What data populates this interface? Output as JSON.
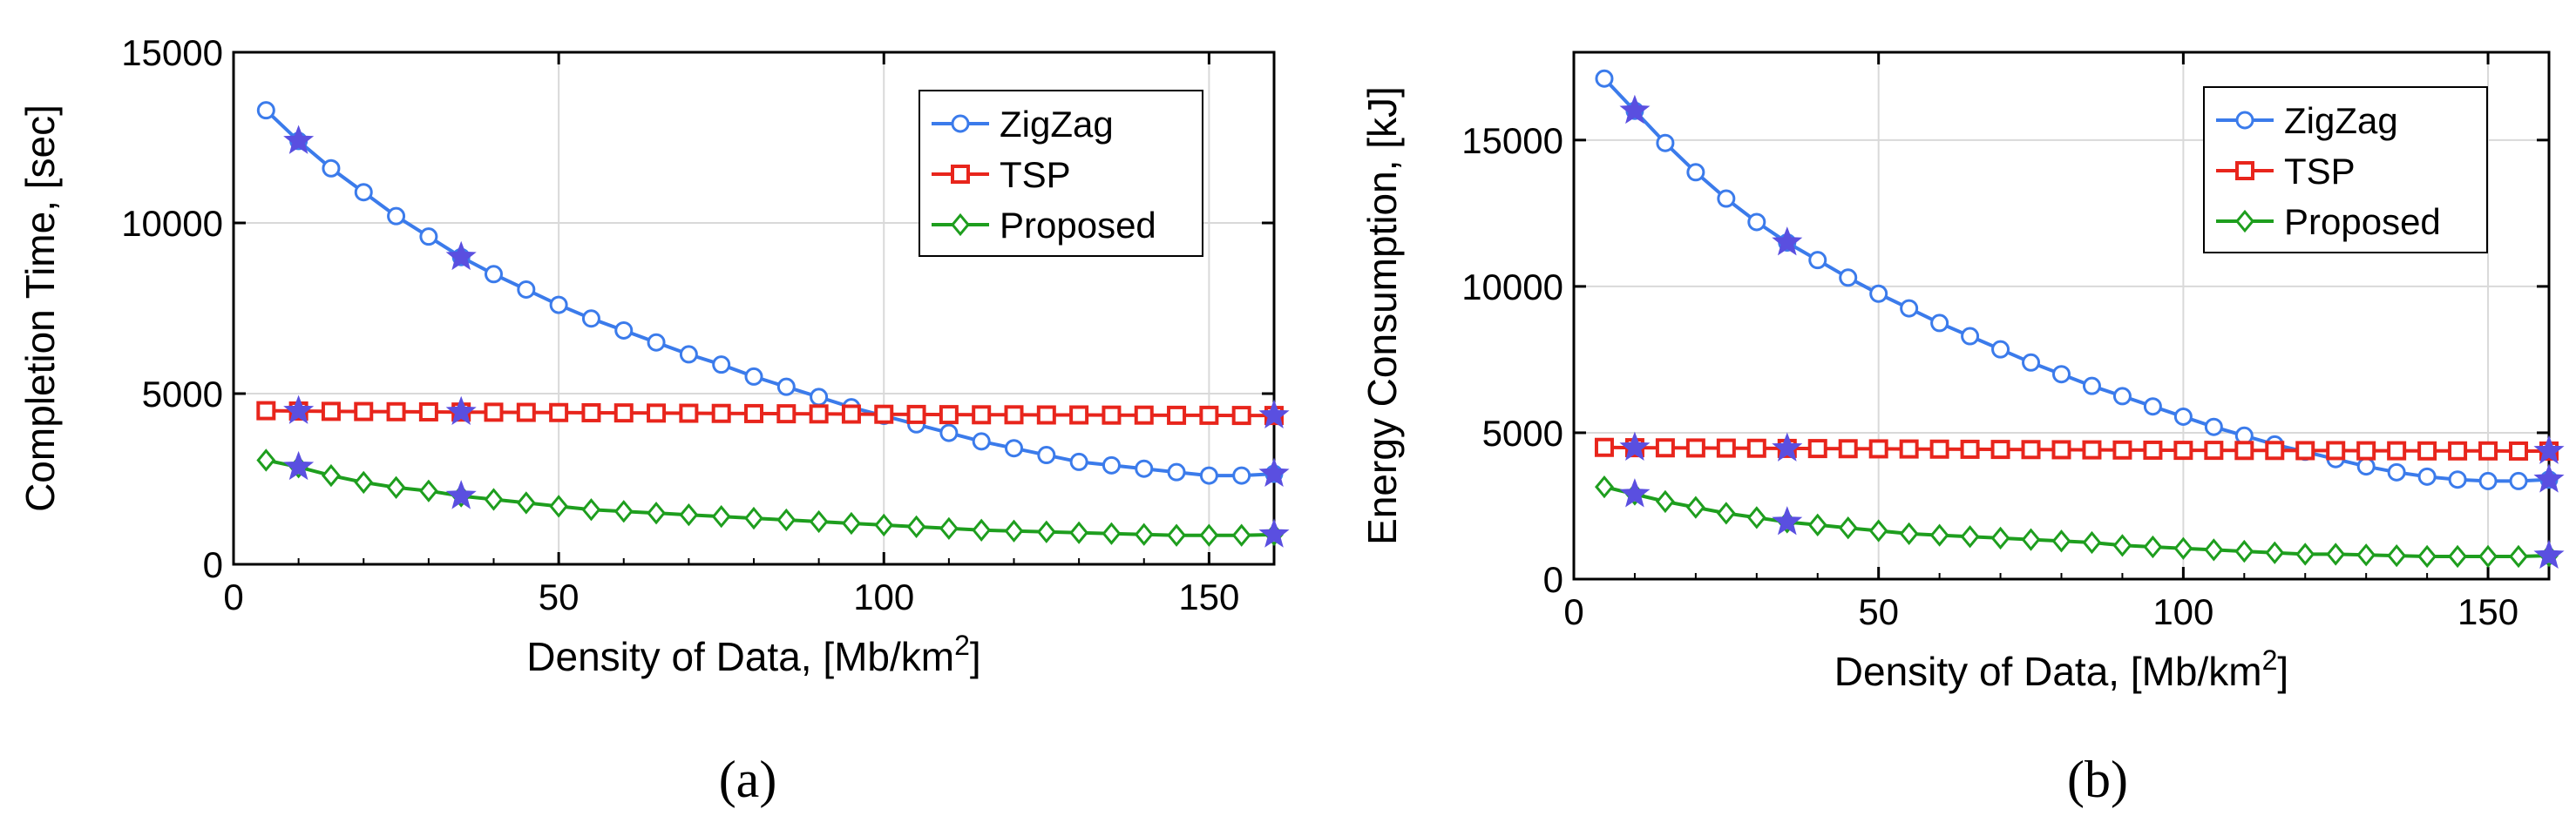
{
  "chart_data": [
    {
      "type": "line",
      "caption": "(a)",
      "xlabel": "Density of Data, [Mb/km",
      "xlabel_sup": "2",
      "xlabel_end": "]",
      "ylabel": "Completion Time, [sec]",
      "xlim": [
        0,
        160
      ],
      "ylim": [
        0,
        15000
      ],
      "xticks": [
        0,
        50,
        100,
        150
      ],
      "yticks": [
        0,
        5000,
        10000,
        15000
      ],
      "grid": true,
      "legend_position": "top-right",
      "x": [
        5,
        10,
        15,
        20,
        25,
        30,
        35,
        40,
        45,
        50,
        55,
        60,
        65,
        70,
        75,
        80,
        85,
        90,
        95,
        100,
        105,
        110,
        115,
        120,
        125,
        130,
        135,
        140,
        145,
        150,
        155,
        160
      ],
      "series": [
        {
          "name": "ZigZag",
          "color": "#3B7BEB",
          "marker": "circle",
          "values": [
            13300,
            12400,
            11600,
            10900,
            10200,
            9600,
            9000,
            8500,
            8050,
            7600,
            7200,
            6850,
            6500,
            6150,
            5850,
            5500,
            5200,
            4900,
            4600,
            4350,
            4100,
            3850,
            3600,
            3400,
            3200,
            3000,
            2900,
            2800,
            2700,
            2600,
            2600,
            2650
          ]
        },
        {
          "name": "TSP",
          "color": "#E8251C",
          "marker": "square",
          "values": [
            4500,
            4490,
            4480,
            4475,
            4470,
            4465,
            4460,
            4455,
            4450,
            4445,
            4440,
            4435,
            4430,
            4425,
            4420,
            4415,
            4410,
            4405,
            4400,
            4395,
            4390,
            4385,
            4380,
            4380,
            4375,
            4375,
            4370,
            4370,
            4365,
            4365,
            4360,
            4360
          ]
        },
        {
          "name": "Proposed",
          "color": "#1E9E1E",
          "marker": "diamond",
          "values": [
            3050,
            2850,
            2600,
            2400,
            2250,
            2150,
            2000,
            1900,
            1800,
            1700,
            1600,
            1550,
            1500,
            1450,
            1400,
            1350,
            1300,
            1250,
            1200,
            1150,
            1100,
            1050,
            1000,
            975,
            950,
            925,
            900,
            875,
            850,
            850,
            850,
            870
          ]
        }
      ],
      "highlighted_x": [
        10,
        35,
        160
      ],
      "highlight_color": "#5A4FE0",
      "highlight_marker": "star"
    },
    {
      "type": "line",
      "caption": "(b)",
      "xlabel": "Density of Data, [Mb/km",
      "xlabel_sup": "2",
      "xlabel_end": "]",
      "ylabel": "Energy Consumption, [kJ]",
      "xlim": [
        0,
        160
      ],
      "ylim": [
        0,
        18000
      ],
      "xticks": [
        0,
        50,
        100,
        150
      ],
      "yticks": [
        0,
        5000,
        10000,
        15000
      ],
      "grid": true,
      "legend_position": "top-right",
      "x": [
        5,
        10,
        15,
        20,
        25,
        30,
        35,
        40,
        45,
        50,
        55,
        60,
        65,
        70,
        75,
        80,
        85,
        90,
        95,
        100,
        105,
        110,
        115,
        120,
        125,
        130,
        135,
        140,
        145,
        150,
        155,
        160
      ],
      "series": [
        {
          "name": "ZigZag",
          "color": "#3B7BEB",
          "marker": "circle",
          "values": [
            17100,
            16000,
            14900,
            13900,
            13000,
            12200,
            11500,
            10900,
            10300,
            9750,
            9250,
            8750,
            8300,
            7850,
            7400,
            7000,
            6600,
            6250,
            5900,
            5550,
            5200,
            4900,
            4600,
            4350,
            4100,
            3850,
            3650,
            3500,
            3400,
            3350,
            3350,
            3400
          ]
        },
        {
          "name": "TSP",
          "color": "#E8251C",
          "marker": "square",
          "values": [
            4500,
            4490,
            4485,
            4480,
            4475,
            4470,
            4465,
            4460,
            4455,
            4450,
            4445,
            4440,
            4435,
            4430,
            4425,
            4420,
            4415,
            4410,
            4405,
            4400,
            4400,
            4395,
            4395,
            4390,
            4390,
            4385,
            4385,
            4380,
            4380,
            4380,
            4375,
            4375
          ]
        },
        {
          "name": "Proposed",
          "color": "#1E9E1E",
          "marker": "diamond",
          "values": [
            3150,
            2900,
            2650,
            2450,
            2250,
            2100,
            1950,
            1850,
            1750,
            1650,
            1550,
            1500,
            1450,
            1400,
            1350,
            1300,
            1250,
            1150,
            1100,
            1050,
            1000,
            950,
            900,
            850,
            850,
            825,
            800,
            775,
            775,
            775,
            775,
            800
          ]
        }
      ],
      "highlighted_x": [
        10,
        35,
        160
      ],
      "highlight_color": "#5A4FE0",
      "highlight_marker": "star"
    }
  ]
}
